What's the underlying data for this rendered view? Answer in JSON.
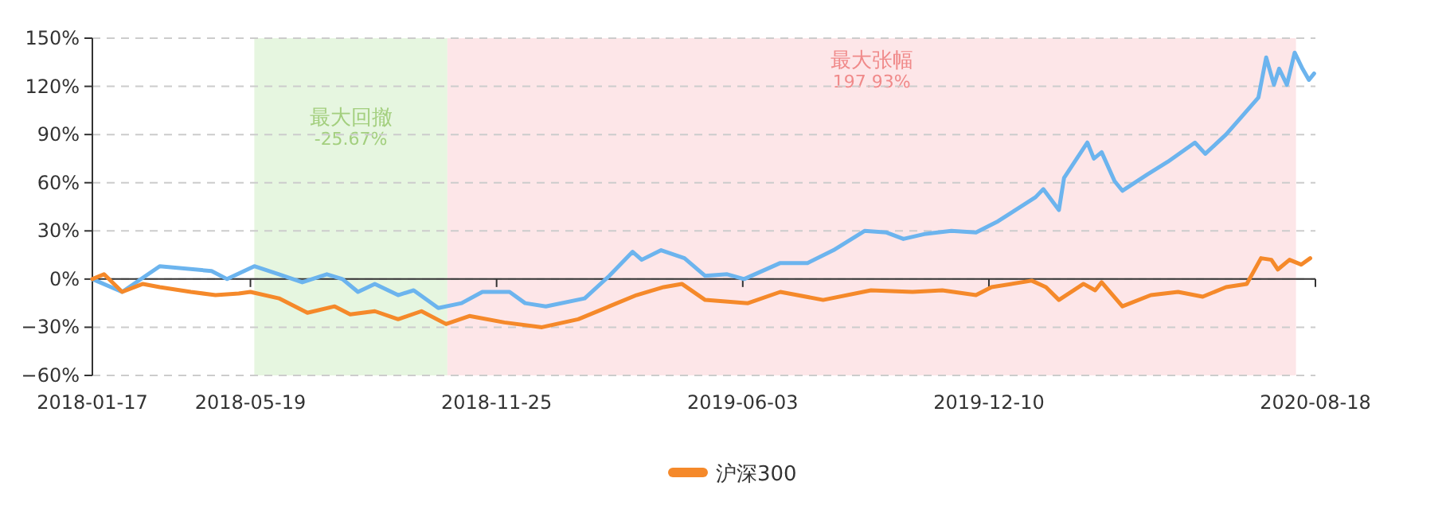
{
  "chart_data": {
    "type": "line",
    "xlim": [
      "2018-01-17",
      "2020-08-18"
    ],
    "xticks": [
      "2018-01-17",
      "2018-05-19",
      "2018-11-25",
      "2019-06-03",
      "2019-12-10",
      "2020-08-18"
    ],
    "ylim": [
      -60,
      150
    ],
    "yticks": [
      {
        "value": -60,
        "label": "−60%"
      },
      {
        "value": -30,
        "label": "−30%"
      },
      {
        "value": 0,
        "label": "0%"
      },
      {
        "value": 30,
        "label": "30%"
      },
      {
        "value": 60,
        "label": "60%"
      },
      {
        "value": 90,
        "label": "90%"
      },
      {
        "value": 120,
        "label": "120%"
      },
      {
        "value": 150,
        "label": "150%"
      }
    ],
    "grid": "y",
    "legend": "bottom",
    "marker": "none",
    "line_style": "solid",
    "bands": [
      {
        "axis": "x",
        "from": "2018-05-22",
        "to": "2018-10-18",
        "label": "最大回撤\n-25.67%",
        "color": "#e6f6e0"
      },
      {
        "axis": "x",
        "from": "2018-10-18",
        "to": "2020-08-03",
        "label": "最大张幅\n197.93%",
        "color": "#fde6e8"
      }
    ],
    "series": [
      {
        "color": "#6cb4ee",
        "x": [
          "2018-01-17",
          "2018-02-09",
          "2018-03-10",
          "2018-04-19",
          "2018-05-01",
          "2018-05-22",
          "2018-06-10",
          "2018-06-28",
          "2018-07-17",
          "2018-07-29",
          "2018-08-10",
          "2018-08-23",
          "2018-09-10",
          "2018-09-22",
          "2018-10-11",
          "2018-10-29",
          "2018-11-14",
          "2018-12-05",
          "2018-12-17",
          "2019-01-02",
          "2019-02-01",
          "2019-02-20",
          "2019-03-10",
          "2019-03-17",
          "2019-04-01",
          "2019-04-19",
          "2019-05-05",
          "2019-05-22",
          "2019-06-04",
          "2019-07-02",
          "2019-07-23",
          "2019-08-12",
          "2019-09-05",
          "2019-09-22",
          "2019-10-05",
          "2019-10-21",
          "2019-11-11",
          "2019-11-30",
          "2019-12-17",
          "2020-01-15",
          "2020-01-21",
          "2020-02-02",
          "2020-02-06",
          "2020-02-24",
          "2020-02-29",
          "2020-03-06",
          "2020-03-16",
          "2020-03-22",
          "2020-04-10",
          "2020-04-26",
          "2020-05-17",
          "2020-05-25",
          "2020-06-10",
          "2020-06-22",
          "2020-07-05",
          "2020-07-11",
          "2020-07-17",
          "2020-07-21",
          "2020-07-27",
          "2020-08-02",
          "2020-08-08",
          "2020-08-13",
          "2020-08-17"
        ],
        "values": [
          0,
          -8,
          8,
          5,
          0,
          8,
          3,
          -2,
          3,
          0,
          -8,
          -3,
          -10,
          -7,
          -18,
          -15,
          -8,
          -8,
          -15,
          -17,
          -12,
          2,
          17,
          12,
          18,
          13,
          2,
          3,
          0,
          10,
          10,
          18,
          30,
          29,
          25,
          28,
          30,
          29,
          36,
          51,
          56,
          43,
          63,
          85,
          75,
          79,
          61,
          55,
          65,
          73,
          85,
          78,
          90,
          101,
          113,
          138,
          121,
          131,
          121,
          141,
          131,
          124,
          128
        ]
      },
      {
        "name": "沪深300",
        "color": "#f5892a",
        "x": [
          "2018-01-17",
          "2018-01-26",
          "2018-02-09",
          "2018-02-25",
          "2018-03-10",
          "2018-04-03",
          "2018-04-22",
          "2018-05-10",
          "2018-05-19",
          "2018-06-10",
          "2018-07-02",
          "2018-07-23",
          "2018-08-04",
          "2018-08-23",
          "2018-09-10",
          "2018-09-28",
          "2018-10-17",
          "2018-11-04",
          "2018-12-01",
          "2018-12-30",
          "2019-01-27",
          "2019-02-20",
          "2019-03-13",
          "2019-04-03",
          "2019-04-17",
          "2019-05-05",
          "2019-06-07",
          "2019-07-02",
          "2019-08-04",
          "2019-09-10",
          "2019-10-12",
          "2019-11-04",
          "2019-11-30",
          "2019-12-12",
          "2020-01-12",
          "2020-01-23",
          "2020-02-02",
          "2020-02-21",
          "2020-03-01",
          "2020-03-06",
          "2020-03-22",
          "2020-04-13",
          "2020-05-04",
          "2020-05-23",
          "2020-06-10",
          "2020-06-26",
          "2020-07-07",
          "2020-07-15",
          "2020-07-20",
          "2020-07-29",
          "2020-08-07",
          "2020-08-14"
        ],
        "values": [
          0,
          3,
          -8,
          -3,
          -5,
          -8,
          -10,
          -9,
          -8,
          -12,
          -21,
          -17,
          -22,
          -20,
          -25,
          -20,
          -28,
          -23,
          -27,
          -30,
          -25,
          -17,
          -10,
          -5,
          -3,
          -13,
          -15,
          -8,
          -13,
          -7,
          -8,
          -7,
          -10,
          -5,
          -1,
          -5,
          -13,
          -3,
          -7,
          -2,
          -17,
          -10,
          -8,
          -11,
          -5,
          -3,
          13,
          12,
          6,
          12,
          9,
          13
        ]
      }
    ]
  }
}
